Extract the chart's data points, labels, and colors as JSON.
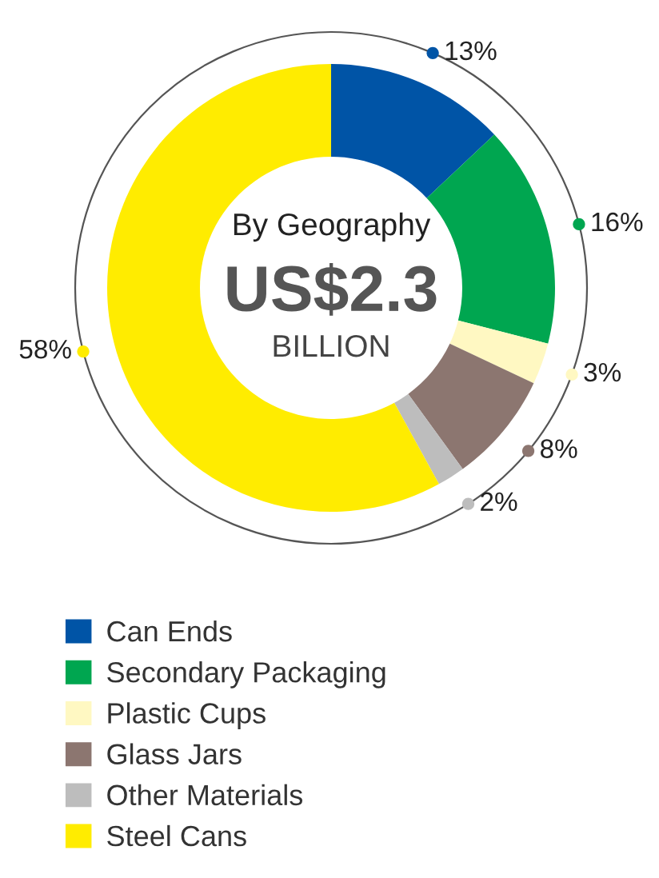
{
  "chart_data": {
    "type": "donut",
    "title": "By Geography",
    "annotations": [
      "US$2.3",
      "BILLION"
    ],
    "categories": [
      "Can Ends",
      "Secondary Packaging",
      "Plastic Cups",
      "Glass Jars",
      "Other Materials",
      "Steel Cans"
    ],
    "values": [
      13,
      16,
      3,
      8,
      2,
      58
    ],
    "colors": [
      "#0054a6",
      "#00a650",
      "#fff8c2",
      "#8c7670",
      "#bdbdbd",
      "#ffec00"
    ],
    "value_labels": [
      "13%",
      "16%",
      "3%",
      "8%",
      "2%",
      "58%"
    ],
    "legend": "bottom left"
  }
}
